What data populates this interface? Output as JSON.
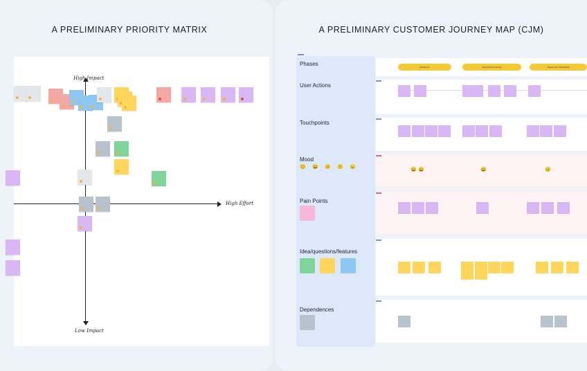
{
  "left_panel": {
    "title": "A PRELIMINARY PRIORITY MATRIX",
    "axes": {
      "high_impact": "High Impact",
      "low_impact": "Low Impact",
      "high_effort": "High Effort"
    }
  },
  "right_panel": {
    "title": "A PRELIMINARY CUSTOMER JOURNEY MAP (CJM)",
    "rows": [
      "Phases",
      "User Actions",
      "Touchpoints",
      "Mood",
      "Pain Points",
      "Idea/questions/features",
      "Dependences"
    ],
    "phases": [
      "Awareness",
      "Exploration/Learning",
      "Signup and Onboarding"
    ]
  },
  "colors": {
    "purple": "#d9b7f5",
    "gray": "#b8c1ce",
    "yellow": "#ffd55c",
    "blue": "#8ec8f2",
    "green": "#7fd49a",
    "pink": "#f5a8a3",
    "sidebar": "#dde9fb"
  }
}
